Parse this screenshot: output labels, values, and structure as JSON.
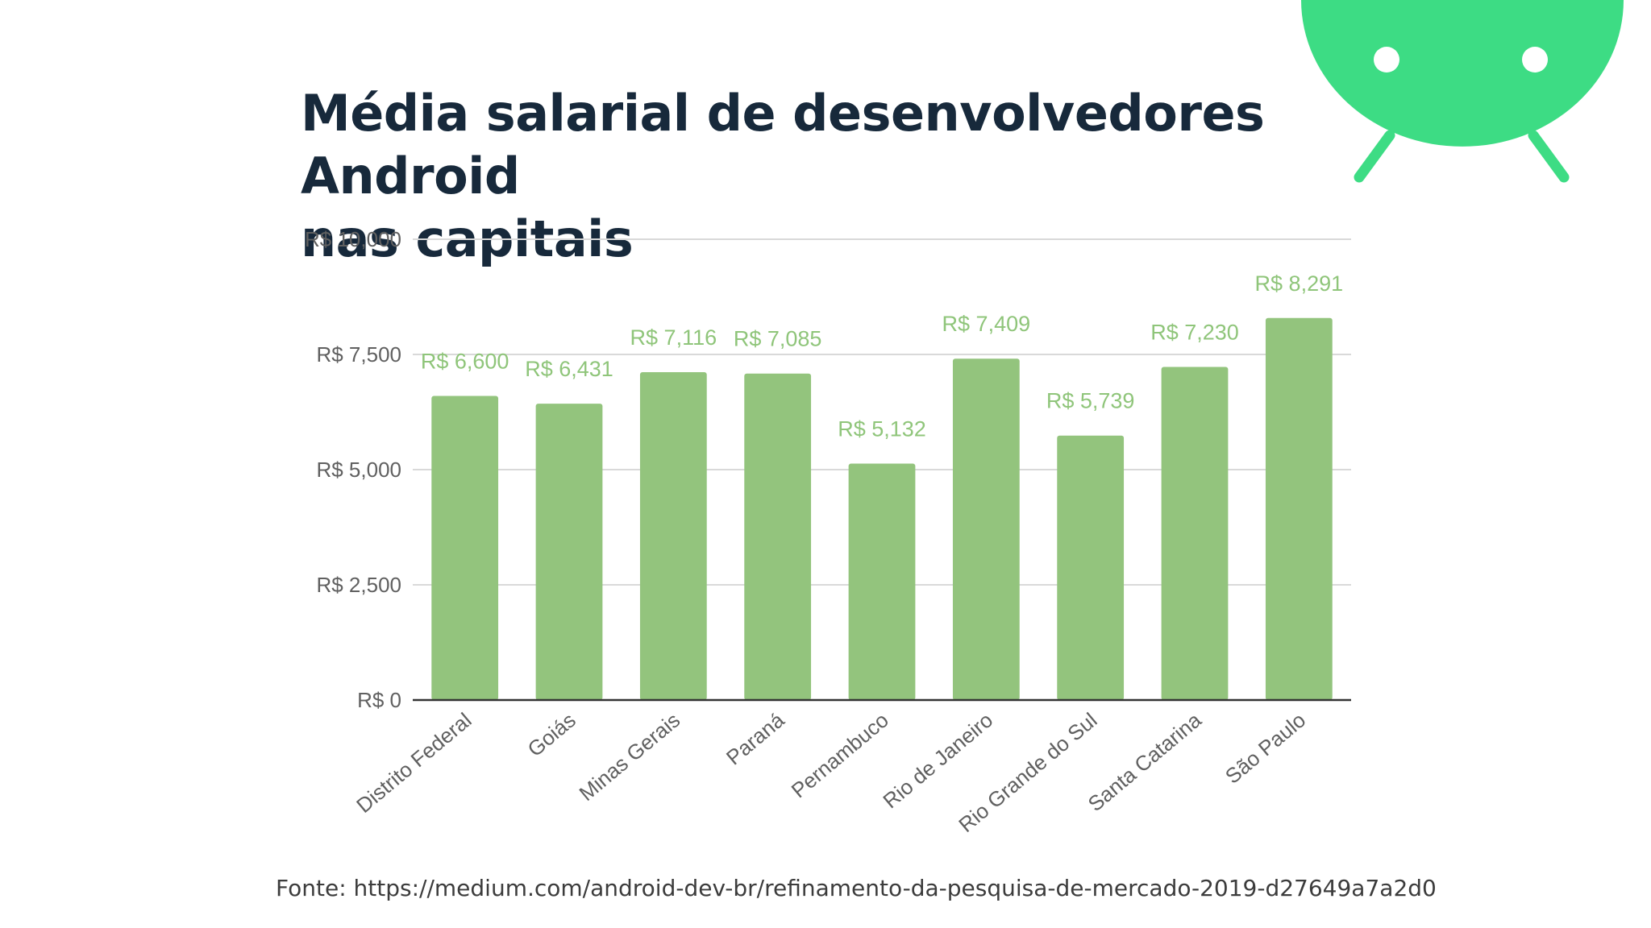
{
  "slide": {
    "title_line1": "Média salarial de desenvolvedores Android",
    "title_line2": "nas capitais",
    "source": "Fonte: https://medium.com/android-dev-br/refinamento-da-pesquisa-de-mercado-2019-d27649a7a2d0"
  },
  "chart_data": {
    "type": "bar",
    "categories": [
      "Distrito Federal",
      "Goiás",
      "Minas Gerais",
      "Paraná",
      "Pernambuco",
      "Rio de Janeiro",
      "Rio Grande do Sul",
      "Santa Catarina",
      "São Paulo"
    ],
    "values": [
      6600,
      6431,
      7116,
      7085,
      5132,
      7409,
      5739,
      7230,
      8291
    ],
    "value_labels": [
      "R$ 6,600",
      "R$ 6,431",
      "R$ 7,116",
      "R$ 7,085",
      "R$ 5,132",
      "R$ 7,409",
      "R$ 5,739",
      "R$ 7,230",
      "R$ 8,291"
    ],
    "yticks": [
      0,
      2500,
      5000,
      7500,
      10000
    ],
    "ytick_labels": [
      "R$ 0",
      "R$ 2,500",
      "R$ 5,000",
      "R$ 7,500",
      "R$ 10,000"
    ],
    "ylim": [
      0,
      10000
    ],
    "grid": true,
    "legend": "none",
    "xlabel": "",
    "ylabel": "",
    "bar_color": "#93c47d",
    "label_color": "#8fc57a",
    "grid_color": "#d9d9d9",
    "axis_color": "#333333"
  },
  "logo": {
    "icon": "android-head-icon",
    "color": "#3ddc84"
  }
}
